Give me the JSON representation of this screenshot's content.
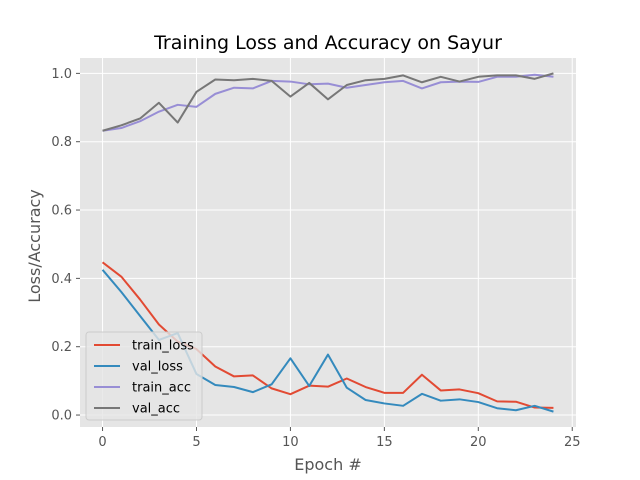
{
  "chart_data": {
    "type": "line",
    "title": "Training Loss and Accuracy on Sayur",
    "xlabel": "Epoch #",
    "ylabel": "Loss/Accuracy",
    "xlim": [
      -1.2,
      25.2
    ],
    "ylim": [
      -0.035,
      1.045
    ],
    "xticks": [
      0,
      5,
      10,
      15,
      20,
      25
    ],
    "yticks": [
      0.0,
      0.2,
      0.4,
      0.6,
      0.8,
      1.0
    ],
    "xtick_labels": [
      "0",
      "5",
      "10",
      "15",
      "20",
      "25"
    ],
    "ytick_labels": [
      "0.0",
      "0.2",
      "0.4",
      "0.6",
      "0.8",
      "1.0"
    ],
    "grid": true,
    "legend_position": "lower-left",
    "x": [
      0,
      1,
      2,
      3,
      4,
      5,
      6,
      7,
      8,
      9,
      10,
      11,
      12,
      13,
      14,
      15,
      16,
      17,
      18,
      19,
      20,
      21,
      22,
      23,
      24
    ],
    "series": [
      {
        "name": "train_loss",
        "color": "#E24A33",
        "values": [
          0.447,
          0.405,
          0.338,
          0.265,
          0.215,
          0.193,
          0.142,
          0.113,
          0.116,
          0.078,
          0.061,
          0.086,
          0.083,
          0.107,
          0.082,
          0.065,
          0.065,
          0.118,
          0.072,
          0.075,
          0.064,
          0.04,
          0.039,
          0.022,
          0.021
        ]
      },
      {
        "name": "val_loss",
        "color": "#348ABD",
        "values": [
          0.425,
          0.36,
          0.29,
          0.22,
          0.24,
          0.12,
          0.088,
          0.082,
          0.067,
          0.09,
          0.166,
          0.085,
          0.177,
          0.08,
          0.044,
          0.034,
          0.027,
          0.062,
          0.042,
          0.046,
          0.038,
          0.02,
          0.014,
          0.027,
          0.01
        ]
      },
      {
        "name": "train_acc",
        "color": "#988ED5",
        "values": [
          0.832,
          0.84,
          0.86,
          0.888,
          0.908,
          0.902,
          0.94,
          0.958,
          0.956,
          0.978,
          0.976,
          0.968,
          0.97,
          0.958,
          0.966,
          0.974,
          0.978,
          0.956,
          0.974,
          0.976,
          0.975,
          0.99,
          0.99,
          0.996,
          0.99
        ]
      },
      {
        "name": "val_acc",
        "color": "#777777",
        "values": [
          0.832,
          0.848,
          0.868,
          0.914,
          0.856,
          0.946,
          0.982,
          0.98,
          0.984,
          0.978,
          0.932,
          0.972,
          0.924,
          0.966,
          0.98,
          0.984,
          0.994,
          0.974,
          0.99,
          0.976,
          0.99,
          0.994,
          0.994,
          0.984,
          1.0
        ]
      }
    ]
  }
}
